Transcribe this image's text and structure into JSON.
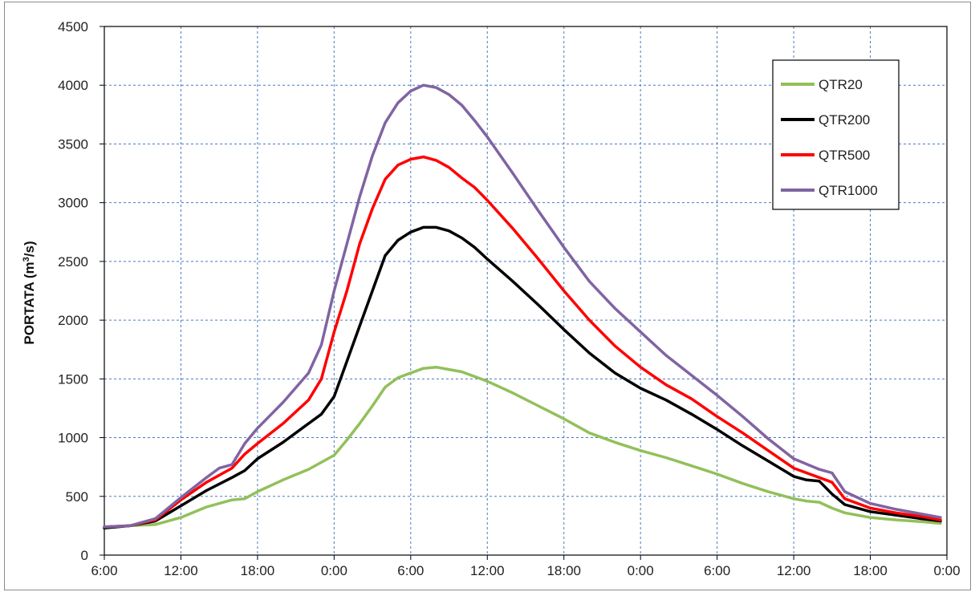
{
  "chart_data": {
    "type": "line",
    "title": "",
    "xlabel": "",
    "ylabel": "PORTATA (m",
    "ylabel_sup": "3",
    "ylabel_suffix": "/s)",
    "ylim": [
      0,
      4500
    ],
    "y_ticks": [
      "0",
      "500",
      "1000",
      "1500",
      "2000",
      "2500",
      "3000",
      "3500",
      "4000",
      "4500"
    ],
    "x_unit": "hours",
    "xlim": [
      6,
      72
    ],
    "x_ticks": [
      {
        "x": 6,
        "label": "6:00"
      },
      {
        "x": 12,
        "label": "12:00"
      },
      {
        "x": 18,
        "label": "18:00"
      },
      {
        "x": 24,
        "label": "0:00"
      },
      {
        "x": 30,
        "label": "6:00"
      },
      {
        "x": 36,
        "label": "12:00"
      },
      {
        "x": 42,
        "label": "18:00"
      },
      {
        "x": 48,
        "label": "0:00"
      },
      {
        "x": 54,
        "label": "6:00"
      },
      {
        "x": 60,
        "label": "12:00"
      },
      {
        "x": 66,
        "label": "18:00"
      },
      {
        "x": 72,
        "label": "0:00"
      }
    ],
    "grid": true,
    "legend_position": "top-right",
    "series": [
      {
        "name": "QTR20",
        "color": "#92c05a",
        "points": [
          [
            6,
            240
          ],
          [
            8,
            250
          ],
          [
            10,
            260
          ],
          [
            12,
            320
          ],
          [
            14,
            410
          ],
          [
            16,
            470
          ],
          [
            17,
            480
          ],
          [
            18,
            540
          ],
          [
            20,
            640
          ],
          [
            22,
            730
          ],
          [
            24,
            850
          ],
          [
            25,
            980
          ],
          [
            26,
            1120
          ],
          [
            27,
            1270
          ],
          [
            28,
            1430
          ],
          [
            29,
            1510
          ],
          [
            30,
            1550
          ],
          [
            31,
            1590
          ],
          [
            32,
            1600
          ],
          [
            33,
            1580
          ],
          [
            34,
            1560
          ],
          [
            35,
            1520
          ],
          [
            36,
            1480
          ],
          [
            38,
            1380
          ],
          [
            40,
            1270
          ],
          [
            42,
            1160
          ],
          [
            44,
            1040
          ],
          [
            46,
            960
          ],
          [
            48,
            890
          ],
          [
            50,
            830
          ],
          [
            52,
            760
          ],
          [
            54,
            690
          ],
          [
            56,
            610
          ],
          [
            58,
            540
          ],
          [
            60,
            480
          ],
          [
            61,
            460
          ],
          [
            62,
            450
          ],
          [
            63,
            400
          ],
          [
            64,
            360
          ],
          [
            66,
            320
          ],
          [
            68,
            300
          ],
          [
            70,
            285
          ],
          [
            71.5,
            270
          ]
        ]
      },
      {
        "name": "QTR200",
        "color": "#000000",
        "points": [
          [
            6,
            230
          ],
          [
            8,
            250
          ],
          [
            10,
            290
          ],
          [
            12,
            420
          ],
          [
            14,
            550
          ],
          [
            16,
            660
          ],
          [
            17,
            720
          ],
          [
            18,
            820
          ],
          [
            20,
            960
          ],
          [
            22,
            1120
          ],
          [
            23,
            1200
          ],
          [
            24,
            1350
          ],
          [
            25,
            1650
          ],
          [
            26,
            1950
          ],
          [
            27,
            2250
          ],
          [
            28,
            2550
          ],
          [
            29,
            2680
          ],
          [
            30,
            2750
          ],
          [
            31,
            2790
          ],
          [
            32,
            2790
          ],
          [
            33,
            2760
          ],
          [
            34,
            2700
          ],
          [
            35,
            2620
          ],
          [
            36,
            2520
          ],
          [
            38,
            2330
          ],
          [
            40,
            2130
          ],
          [
            42,
            1920
          ],
          [
            44,
            1720
          ],
          [
            46,
            1550
          ],
          [
            48,
            1420
          ],
          [
            50,
            1320
          ],
          [
            52,
            1200
          ],
          [
            54,
            1070
          ],
          [
            56,
            930
          ],
          [
            58,
            800
          ],
          [
            60,
            670
          ],
          [
            61,
            640
          ],
          [
            62,
            630
          ],
          [
            63,
            520
          ],
          [
            64,
            430
          ],
          [
            66,
            370
          ],
          [
            68,
            340
          ],
          [
            70,
            310
          ],
          [
            71.5,
            290
          ]
        ]
      },
      {
        "name": "QTR500",
        "color": "#ff0000",
        "points": [
          [
            6,
            240
          ],
          [
            8,
            250
          ],
          [
            10,
            300
          ],
          [
            12,
            470
          ],
          [
            14,
            620
          ],
          [
            16,
            740
          ],
          [
            17,
            860
          ],
          [
            18,
            950
          ],
          [
            20,
            1120
          ],
          [
            22,
            1320
          ],
          [
            23,
            1500
          ],
          [
            24,
            1900
          ],
          [
            25,
            2250
          ],
          [
            26,
            2650
          ],
          [
            27,
            2950
          ],
          [
            28,
            3200
          ],
          [
            29,
            3320
          ],
          [
            30,
            3370
          ],
          [
            31,
            3390
          ],
          [
            32,
            3360
          ],
          [
            33,
            3300
          ],
          [
            34,
            3210
          ],
          [
            35,
            3130
          ],
          [
            36,
            3020
          ],
          [
            38,
            2780
          ],
          [
            40,
            2520
          ],
          [
            42,
            2250
          ],
          [
            44,
            2000
          ],
          [
            46,
            1780
          ],
          [
            48,
            1600
          ],
          [
            50,
            1450
          ],
          [
            52,
            1330
          ],
          [
            54,
            1180
          ],
          [
            56,
            1040
          ],
          [
            58,
            890
          ],
          [
            60,
            740
          ],
          [
            62,
            660
          ],
          [
            63,
            620
          ],
          [
            64,
            480
          ],
          [
            66,
            400
          ],
          [
            68,
            360
          ],
          [
            70,
            330
          ],
          [
            71.5,
            300
          ]
        ]
      },
      {
        "name": "QTR1000",
        "color": "#8064a2",
        "points": [
          [
            6,
            240
          ],
          [
            8,
            250
          ],
          [
            10,
            310
          ],
          [
            12,
            490
          ],
          [
            14,
            660
          ],
          [
            15,
            740
          ],
          [
            16,
            770
          ],
          [
            17,
            950
          ],
          [
            18,
            1080
          ],
          [
            20,
            1300
          ],
          [
            22,
            1550
          ],
          [
            23,
            1790
          ],
          [
            24,
            2250
          ],
          [
            25,
            2650
          ],
          [
            26,
            3050
          ],
          [
            27,
            3400
          ],
          [
            28,
            3680
          ],
          [
            29,
            3850
          ],
          [
            30,
            3950
          ],
          [
            31,
            4000
          ],
          [
            32,
            3980
          ],
          [
            33,
            3920
          ],
          [
            34,
            3830
          ],
          [
            35,
            3700
          ],
          [
            36,
            3560
          ],
          [
            38,
            3250
          ],
          [
            40,
            2930
          ],
          [
            42,
            2620
          ],
          [
            44,
            2330
          ],
          [
            46,
            2100
          ],
          [
            48,
            1900
          ],
          [
            50,
            1700
          ],
          [
            52,
            1530
          ],
          [
            54,
            1360
          ],
          [
            56,
            1180
          ],
          [
            58,
            990
          ],
          [
            60,
            820
          ],
          [
            62,
            730
          ],
          [
            63,
            700
          ],
          [
            64,
            540
          ],
          [
            66,
            440
          ],
          [
            68,
            390
          ],
          [
            70,
            350
          ],
          [
            71.5,
            320
          ]
        ]
      }
    ]
  }
}
